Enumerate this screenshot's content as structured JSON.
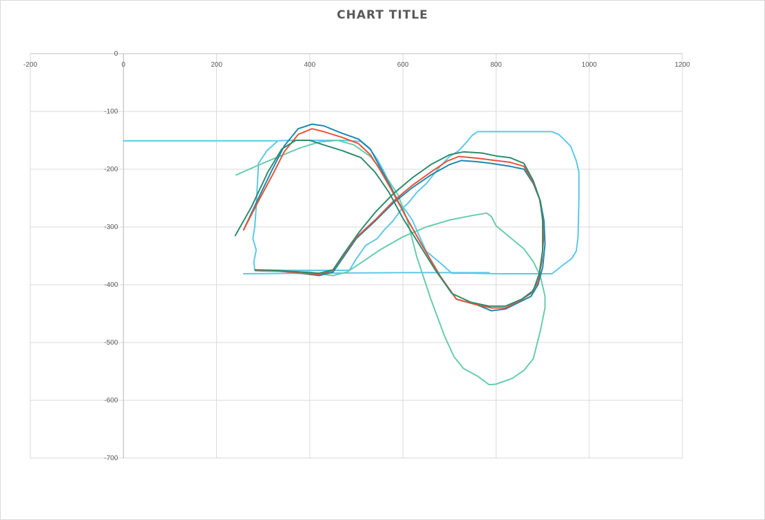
{
  "chart_data": {
    "type": "scatter",
    "title": "CHART TITLE",
    "xlabel": "",
    "ylabel": "",
    "xlim": [
      -200,
      1200
    ],
    "ylim": [
      -700,
      0
    ],
    "x_ticks": [
      -200,
      0,
      200,
      400,
      600,
      800,
      1000,
      1200
    ],
    "y_ticks": [
      0,
      -100,
      -200,
      -300,
      -400,
      -500,
      -600,
      -700
    ],
    "x_tick_labels": [
      "-200",
      "0",
      "200",
      "400",
      "600",
      "800",
      "1000",
      "1200"
    ],
    "y_tick_labels": [
      "0",
      "-100",
      "-200",
      "-300",
      "-400",
      "-500",
      "-600",
      "-700"
    ],
    "grid": true,
    "legend": "none",
    "series": [
      {
        "color": "#5bc8e8",
        "points": [
          [
            0,
            -151
          ],
          [
            330,
            -151
          ],
          [
            360,
            -150
          ],
          [
            420,
            -150
          ],
          [
            470,
            -150
          ],
          [
            510,
            -152
          ],
          [
            530,
            -166
          ],
          [
            545,
            -183
          ],
          [
            560,
            -205
          ],
          [
            575,
            -232
          ],
          [
            590,
            -258
          ],
          [
            605,
            -270
          ],
          [
            620,
            -288
          ],
          [
            635,
            -315
          ],
          [
            650,
            -342
          ],
          [
            665,
            -352
          ],
          [
            680,
            -362
          ],
          [
            705,
            -380
          ],
          [
            750,
            -380
          ],
          [
            800,
            -381
          ],
          [
            920,
            -381
          ],
          [
            945,
            -365
          ],
          [
            962,
            -355
          ],
          [
            972,
            -342
          ],
          [
            976,
            -318
          ],
          [
            978,
            -250
          ],
          [
            978,
            -205
          ],
          [
            972,
            -185
          ],
          [
            960,
            -160
          ],
          [
            950,
            -152
          ],
          [
            935,
            -140
          ],
          [
            920,
            -135
          ],
          [
            790,
            -135
          ],
          [
            760,
            -135
          ],
          [
            748,
            -142
          ],
          [
            738,
            -152
          ],
          [
            720,
            -168
          ],
          [
            700,
            -178
          ],
          [
            680,
            -195
          ],
          [
            665,
            -210
          ],
          [
            650,
            -225
          ],
          [
            630,
            -240
          ],
          [
            612,
            -258
          ],
          [
            598,
            -268
          ],
          [
            578,
            -290
          ],
          [
            560,
            -305
          ],
          [
            545,
            -320
          ],
          [
            520,
            -332
          ],
          [
            500,
            -355
          ],
          [
            485,
            -375
          ],
          [
            400,
            -375
          ],
          [
            282,
            -375
          ],
          [
            280,
            -360
          ],
          [
            285,
            -340
          ],
          [
            278,
            -320
          ],
          [
            282,
            -300
          ],
          [
            285,
            -265
          ],
          [
            288,
            -220
          ],
          [
            290,
            -190
          ],
          [
            308,
            -168
          ],
          [
            330,
            -152
          ]
        ]
      },
      {
        "color": "#5bc8e8",
        "points": [
          [
            258,
            -381
          ],
          [
            400,
            -380
          ],
          [
            600,
            -379
          ],
          [
            785,
            -379
          ]
        ]
      },
      {
        "color": "#66cdaa",
        "points": [
          [
            242,
            -210
          ],
          [
            290,
            -193
          ],
          [
            340,
            -176
          ],
          [
            380,
            -163
          ],
          [
            420,
            -153
          ],
          [
            460,
            -150
          ],
          [
            495,
            -158
          ],
          [
            530,
            -178
          ],
          [
            560,
            -208
          ],
          [
            590,
            -245
          ],
          [
            610,
            -290
          ],
          [
            630,
            -352
          ],
          [
            660,
            -425
          ],
          [
            690,
            -490
          ],
          [
            710,
            -525
          ],
          [
            730,
            -545
          ],
          [
            760,
            -558
          ],
          [
            785,
            -573
          ],
          [
            800,
            -572
          ],
          [
            835,
            -562
          ],
          [
            860,
            -548
          ],
          [
            880,
            -528
          ],
          [
            895,
            -480
          ],
          [
            905,
            -440
          ],
          [
            905,
            -420
          ],
          [
            895,
            -385
          ],
          [
            880,
            -360
          ],
          [
            860,
            -338
          ],
          [
            830,
            -318
          ],
          [
            800,
            -298
          ],
          [
            790,
            -282
          ],
          [
            780,
            -276
          ],
          [
            750,
            -280
          ],
          [
            700,
            -288
          ],
          [
            650,
            -300
          ],
          [
            600,
            -317
          ],
          [
            550,
            -340
          ],
          [
            510,
            -362
          ],
          [
            480,
            -378
          ],
          [
            450,
            -384
          ],
          [
            420,
            -381
          ],
          [
            400,
            -378
          ],
          [
            350,
            -377
          ],
          [
            283,
            -376
          ]
        ]
      },
      {
        "color": "#1c87b0",
        "points": [
          [
            258,
            -305
          ],
          [
            290,
            -250
          ],
          [
            320,
            -200
          ],
          [
            345,
            -160
          ],
          [
            375,
            -130
          ],
          [
            405,
            -122
          ],
          [
            430,
            -125
          ],
          [
            470,
            -138
          ],
          [
            505,
            -148
          ],
          [
            530,
            -165
          ],
          [
            550,
            -195
          ],
          [
            575,
            -232
          ],
          [
            605,
            -280
          ],
          [
            640,
            -330
          ],
          [
            680,
            -385
          ],
          [
            715,
            -425
          ],
          [
            760,
            -435
          ],
          [
            790,
            -445
          ],
          [
            820,
            -442
          ],
          [
            850,
            -430
          ],
          [
            875,
            -420
          ],
          [
            890,
            -400
          ],
          [
            900,
            -370
          ],
          [
            905,
            -330
          ],
          [
            903,
            -290
          ],
          [
            895,
            -255
          ],
          [
            880,
            -225
          ],
          [
            860,
            -200
          ],
          [
            830,
            -195
          ],
          [
            790,
            -190
          ],
          [
            760,
            -187
          ],
          [
            725,
            -185
          ],
          [
            700,
            -192
          ],
          [
            660,
            -210
          ],
          [
            620,
            -232
          ],
          [
            580,
            -258
          ],
          [
            540,
            -290
          ],
          [
            500,
            -320
          ],
          [
            470,
            -355
          ],
          [
            450,
            -378
          ],
          [
            420,
            -384
          ],
          [
            380,
            -380
          ],
          [
            330,
            -376
          ],
          [
            283,
            -375
          ]
        ]
      },
      {
        "color": "#e8533a",
        "points": [
          [
            258,
            -305
          ],
          [
            290,
            -255
          ],
          [
            320,
            -210
          ],
          [
            345,
            -170
          ],
          [
            375,
            -140
          ],
          [
            405,
            -130
          ],
          [
            430,
            -135
          ],
          [
            470,
            -145
          ],
          [
            505,
            -156
          ],
          [
            530,
            -175
          ],
          [
            550,
            -200
          ],
          [
            575,
            -235
          ],
          [
            605,
            -280
          ],
          [
            640,
            -330
          ],
          [
            680,
            -385
          ],
          [
            715,
            -425
          ],
          [
            760,
            -435
          ],
          [
            790,
            -440
          ],
          [
            820,
            -440
          ],
          [
            850,
            -428
          ],
          [
            875,
            -415
          ],
          [
            890,
            -395
          ],
          [
            898,
            -360
          ],
          [
            902,
            -320
          ],
          [
            900,
            -285
          ],
          [
            893,
            -250
          ],
          [
            878,
            -220
          ],
          [
            860,
            -195
          ],
          [
            830,
            -188
          ],
          [
            790,
            -184
          ],
          [
            760,
            -181
          ],
          [
            720,
            -178
          ],
          [
            695,
            -186
          ],
          [
            660,
            -205
          ],
          [
            620,
            -228
          ],
          [
            580,
            -255
          ],
          [
            540,
            -288
          ],
          [
            500,
            -318
          ],
          [
            470,
            -352
          ],
          [
            450,
            -375
          ],
          [
            420,
            -382
          ],
          [
            380,
            -380
          ],
          [
            330,
            -376
          ],
          [
            283,
            -375
          ]
        ]
      },
      {
        "color": "#2e8b6e",
        "points": [
          [
            240,
            -315
          ],
          [
            275,
            -265
          ],
          [
            310,
            -205
          ],
          [
            340,
            -165
          ],
          [
            370,
            -150
          ],
          [
            400,
            -150
          ],
          [
            430,
            -158
          ],
          [
            470,
            -168
          ],
          [
            510,
            -180
          ],
          [
            540,
            -205
          ],
          [
            570,
            -240
          ],
          [
            600,
            -285
          ],
          [
            635,
            -330
          ],
          [
            670,
            -375
          ],
          [
            705,
            -415
          ],
          [
            745,
            -430
          ],
          [
            785,
            -437
          ],
          [
            820,
            -437
          ],
          [
            855,
            -425
          ],
          [
            880,
            -410
          ],
          [
            893,
            -380
          ],
          [
            900,
            -340
          ],
          [
            900,
            -290
          ],
          [
            895,
            -255
          ],
          [
            880,
            -220
          ],
          [
            860,
            -190
          ],
          [
            830,
            -180
          ],
          [
            800,
            -177
          ],
          [
            770,
            -172
          ],
          [
            730,
            -170
          ],
          [
            700,
            -175
          ],
          [
            660,
            -192
          ],
          [
            620,
            -215
          ],
          [
            580,
            -242
          ],
          [
            540,
            -275
          ],
          [
            505,
            -310
          ],
          [
            470,
            -350
          ],
          [
            450,
            -374
          ],
          [
            420,
            -380
          ],
          [
            380,
            -378
          ],
          [
            330,
            -375
          ],
          [
            283,
            -374
          ]
        ]
      }
    ]
  }
}
